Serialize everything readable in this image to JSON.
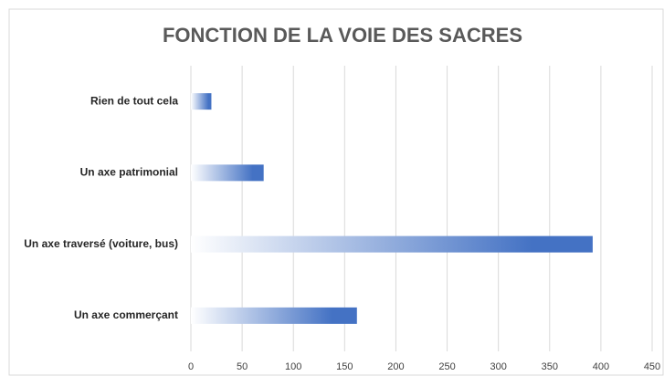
{
  "chart_data": {
    "type": "barh",
    "title": "FONCTION DE LA VOIE DES SACRES",
    "categories": [
      "Rien de tout cela",
      "Un axe patrimonial",
      "Un axe traversé (voiture, bus)",
      "Un axe commerçant"
    ],
    "values": [
      20,
      71,
      392,
      162
    ],
    "color": "#4472c4",
    "xlim": [
      0,
      450
    ],
    "xticks": [
      0,
      50,
      100,
      150,
      200,
      250,
      300,
      350,
      400,
      450
    ],
    "grid": true
  }
}
